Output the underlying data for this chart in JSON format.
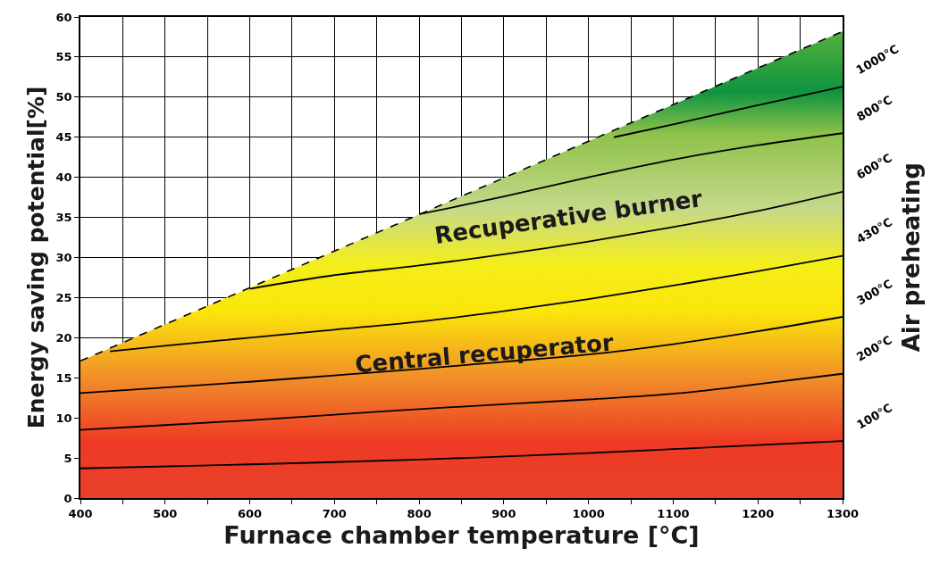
{
  "chart_data": {
    "type": "line",
    "xlabel": "Furnace chamber temperature [°C]",
    "ylabel": "Energy saving potential[%]",
    "xlim": [
      400,
      1300
    ],
    "ylim": [
      0,
      60
    ],
    "xticks": [
      400,
      {
        "value": 450,
        "label": null
      },
      500,
      {
        "value": 550,
        "label": null
      },
      600,
      {
        "value": 650,
        "label": null
      },
      700,
      {
        "value": 750,
        "label": null
      },
      800,
      {
        "value": 850,
        "label": null
      },
      900,
      {
        "value": 950,
        "label": null
      },
      1000,
      {
        "value": 1050,
        "label": null
      },
      1100,
      {
        "value": 1150,
        "label": null
      },
      1200,
      {
        "value": 1250,
        "label": null
      },
      1300
    ],
    "yticks": [
      0,
      5,
      10,
      15,
      20,
      25,
      30,
      35,
      40,
      45,
      50,
      55,
      60
    ],
    "grid": true,
    "legend": false,
    "marker": "none",
    "series": [
      {
        "type": "area",
        "line_style": "dashed",
        "color": "#000000",
        "x": [
          400,
          1300
        ],
        "values": [
          17.1,
          58.2
        ]
      },
      {
        "name": "100°C",
        "color": "#000000",
        "x": [
          400,
          600,
          800,
          1000,
          1100,
          1200,
          1300
        ],
        "values": [
          3.7,
          4.2,
          4.8,
          5.6,
          6.1,
          6.6,
          7.1
        ]
      },
      {
        "name": "200°C",
        "color": "#000000",
        "x": [
          400,
          500,
          600,
          700,
          800,
          900,
          1000,
          1100,
          1200,
          1300
        ],
        "values": [
          8.5,
          9.1,
          9.7,
          10.4,
          11.1,
          11.7,
          12.3,
          13.0,
          14.2,
          15.5
        ]
      },
      {
        "name": "300°C",
        "color": "#000000",
        "x": [
          400,
          500,
          600,
          700,
          800,
          900,
          1000,
          1100,
          1200,
          1300
        ],
        "values": [
          13.1,
          13.8,
          14.5,
          15.3,
          16.1,
          17.0,
          17.9,
          19.2,
          20.8,
          22.6
        ]
      },
      {
        "name": "430°C",
        "color": "#000000",
        "x": [
          435,
          500,
          600,
          700,
          800,
          900,
          1000,
          1100,
          1200,
          1300
        ],
        "values": [
          18.3,
          19.0,
          20.0,
          21.0,
          22.0,
          23.3,
          24.8,
          26.5,
          28.3,
          30.2
        ]
      },
      {
        "name": "600°C",
        "color": "#000000",
        "x": [
          600,
          700,
          800,
          900,
          1000,
          1100,
          1200,
          1300
        ],
        "values": [
          26.1,
          27.8,
          29.0,
          30.4,
          32.0,
          33.8,
          35.8,
          38.2
        ]
      },
      {
        "name": "800°C",
        "color": "#000000",
        "x": [
          800,
          900,
          1000,
          1100,
          1200,
          1300
        ],
        "values": [
          35.4,
          37.6,
          40.0,
          42.2,
          44.0,
          45.5
        ]
      },
      {
        "name": "1000°C",
        "color": "#000000",
        "x": [
          1030,
          1100,
          1200,
          1300
        ],
        "values": [
          45.0,
          46.6,
          49.0,
          51.3
        ]
      }
    ],
    "annotations": [
      "Recuperative burner",
      "Central recuperator",
      "Air preheating"
    ]
  }
}
